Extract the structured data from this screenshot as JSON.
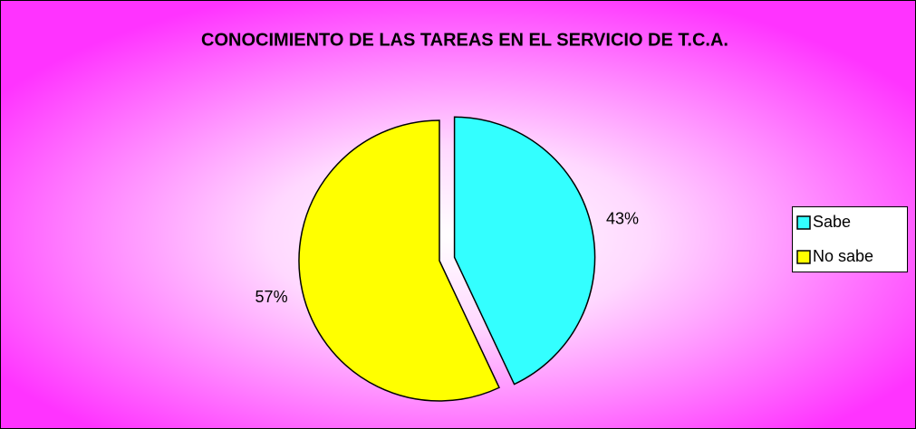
{
  "chart_data": {
    "type": "pie",
    "title": "CONOCIMIENTO DE LAS TAREAS EN EL SERVICIO DE T.C.A.",
    "categories": [
      "Sabe",
      "No sabe"
    ],
    "values": [
      43,
      57
    ],
    "value_labels": [
      "43%",
      "57%"
    ],
    "colors": [
      "#33ffff",
      "#ffff00"
    ],
    "legend": "right"
  }
}
